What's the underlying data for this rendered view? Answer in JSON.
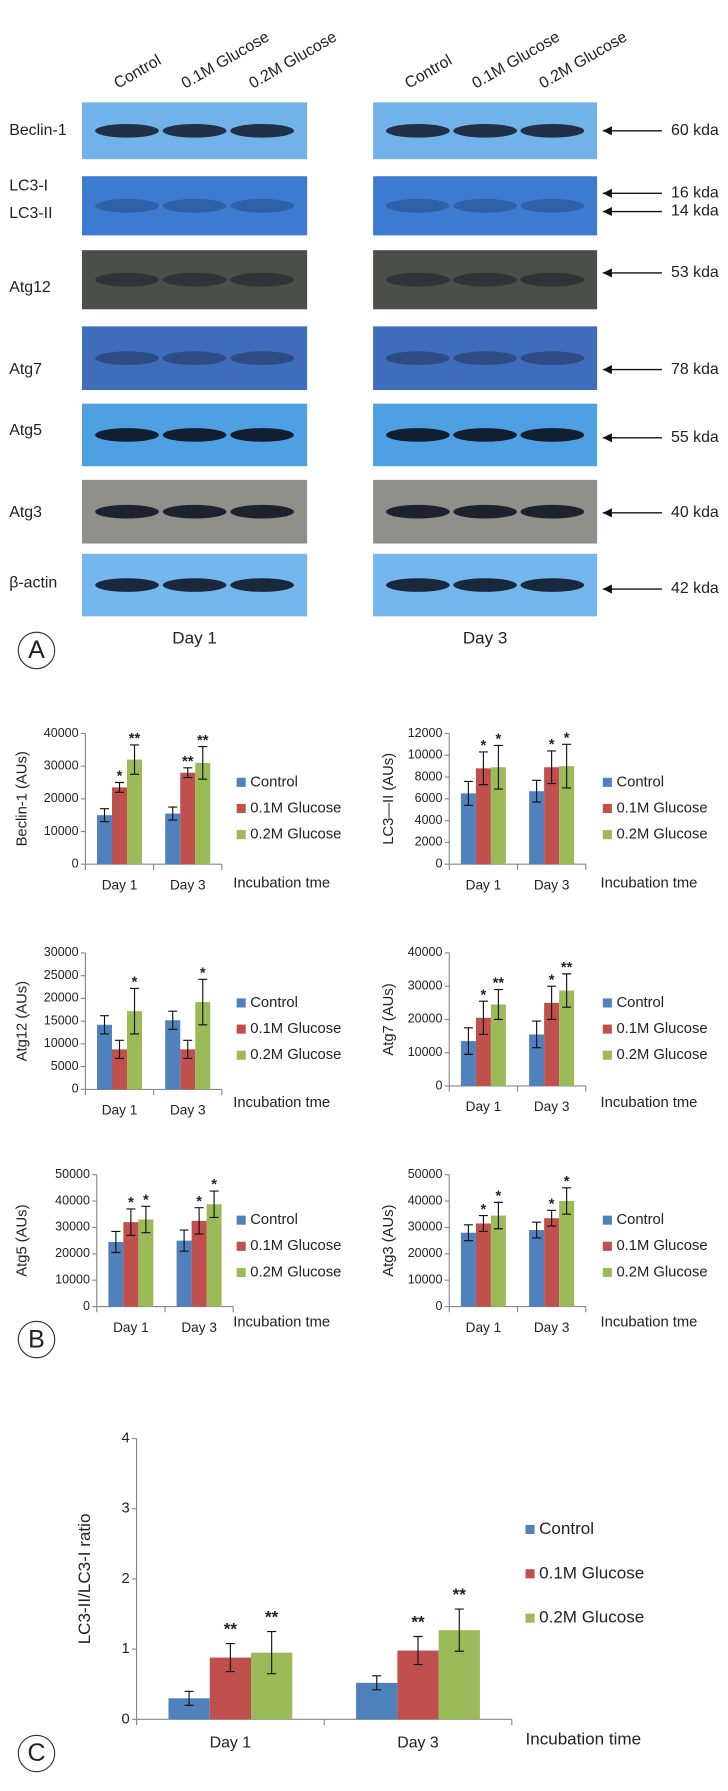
{
  "panel_labels": [
    "A",
    "B",
    "C"
  ],
  "blots": {
    "lanes": [
      "Control",
      "0.1M Glucose",
      "0.2M Glucose"
    ],
    "groups": [
      "Day 1",
      "Day 3"
    ],
    "rows": [
      "Beclin-1",
      "LC3-I",
      "LC3-II",
      "Atg12",
      "Atg7",
      "Atg5",
      "Atg3",
      "β-actin"
    ],
    "markers": [
      "60 kda",
      "16 kda",
      "14 kda",
      "53 kda",
      "78 kda",
      "55 kda",
      "40 kda",
      "42 kda"
    ]
  },
  "chart_data": [
    {
      "type": "bar",
      "ylabel": "Beclin-1 (AUs)",
      "xlabel": "Incubation tme",
      "categories": [
        "Day 1",
        "Day 3"
      ],
      "ylim": [
        0,
        40000
      ],
      "yticks": [
        0,
        10000,
        20000,
        30000,
        40000
      ],
      "series": [
        {
          "name": "Control",
          "color": "#4f81bd",
          "values": [
            15000,
            15500
          ],
          "errors": [
            2000,
            2000
          ],
          "significance": [
            null,
            null
          ]
        },
        {
          "name": "0.1M Glucose",
          "color": "#c0504d",
          "values": [
            23500,
            28000
          ],
          "errors": [
            1500,
            1500
          ],
          "significance": [
            "*",
            "**"
          ]
        },
        {
          "name": "0.2M Glucose",
          "color": "#9bbb59",
          "values": [
            32000,
            31000
          ],
          "errors": [
            4500,
            5000
          ],
          "significance": [
            "**",
            "**"
          ]
        }
      ]
    },
    {
      "type": "bar",
      "ylabel": "LC3—II (AUs)",
      "xlabel": "Incubation tme",
      "categories": [
        "Day 1",
        "Day 3"
      ],
      "ylim": [
        0,
        12000
      ],
      "yticks": [
        0,
        2000,
        4000,
        6000,
        8000,
        10000,
        12000
      ],
      "series": [
        {
          "name": "Control",
          "color": "#4f81bd",
          "values": [
            6500,
            6700
          ],
          "errors": [
            1100,
            1000
          ],
          "significance": [
            null,
            null
          ]
        },
        {
          "name": "0.1M Glucose",
          "color": "#c0504d",
          "values": [
            8800,
            8900
          ],
          "errors": [
            1500,
            1500
          ],
          "significance": [
            "*",
            "*"
          ]
        },
        {
          "name": "0.2M Glucose",
          "color": "#9bbb59",
          "values": [
            8900,
            9000
          ],
          "errors": [
            2000,
            2000
          ],
          "significance": [
            "*",
            "*"
          ]
        }
      ]
    },
    {
      "type": "bar",
      "ylabel": "Atg12 (AUs)",
      "xlabel": "Incubation tme",
      "categories": [
        "Day 1",
        "Day 3"
      ],
      "ylim": [
        0,
        30000
      ],
      "yticks": [
        0,
        5000,
        10000,
        15000,
        20000,
        25000,
        30000
      ],
      "series": [
        {
          "name": "Control",
          "color": "#4f81bd",
          "values": [
            14200,
            15200
          ],
          "errors": [
            2000,
            2000
          ],
          "significance": [
            null,
            null
          ]
        },
        {
          "name": "0.1M Glucose",
          "color": "#c0504d",
          "values": [
            8800,
            8800
          ],
          "errors": [
            2000,
            2000
          ],
          "significance": [
            null,
            null
          ]
        },
        {
          "name": "0.2M Glucose",
          "color": "#9bbb59",
          "values": [
            17200,
            19200
          ],
          "errors": [
            5000,
            5000
          ],
          "significance": [
            "*",
            "*"
          ]
        }
      ]
    },
    {
      "type": "bar",
      "ylabel": "Atg7 (AUs)",
      "xlabel": "Incubation tme",
      "categories": [
        "Day 1",
        "Day 3"
      ],
      "ylim": [
        0,
        40000
      ],
      "yticks": [
        0,
        10000,
        20000,
        30000,
        40000
      ],
      "series": [
        {
          "name": "Control",
          "color": "#4f81bd",
          "values": [
            13500,
            15500
          ],
          "errors": [
            4000,
            4000
          ],
          "significance": [
            null,
            null
          ]
        },
        {
          "name": "0.1M Glucose",
          "color": "#c0504d",
          "values": [
            20500,
            25000
          ],
          "errors": [
            5000,
            5000
          ],
          "significance": [
            "*",
            "*"
          ]
        },
        {
          "name": "0.2M Glucose",
          "color": "#9bbb59",
          "values": [
            24500,
            28700
          ],
          "errors": [
            4500,
            5000
          ],
          "significance": [
            "**",
            "**"
          ]
        }
      ]
    },
    {
      "type": "bar",
      "ylabel": "Atg5 (AUs)",
      "xlabel": "Incubation tme",
      "categories": [
        "Day 1",
        "Day 3"
      ],
      "ylim": [
        0,
        50000
      ],
      "yticks": [
        0,
        10000,
        20000,
        30000,
        40000,
        50000
      ],
      "series": [
        {
          "name": "Control",
          "color": "#4f81bd",
          "values": [
            24500,
            25000
          ],
          "errors": [
            4000,
            4000
          ],
          "significance": [
            null,
            null
          ]
        },
        {
          "name": "0.1M Glucose",
          "color": "#c0504d",
          "values": [
            32000,
            32500
          ],
          "errors": [
            5000,
            5000
          ],
          "significance": [
            "*",
            "*"
          ]
        },
        {
          "name": "0.2M Glucose",
          "color": "#9bbb59",
          "values": [
            33000,
            38800
          ],
          "errors": [
            5000,
            5000
          ],
          "significance": [
            "*",
            "*"
          ]
        }
      ]
    },
    {
      "type": "bar",
      "ylabel": "Atg3 (AUs)",
      "xlabel": "Incubation tme",
      "categories": [
        "Day 1",
        "Day 3"
      ],
      "ylim": [
        0,
        50000
      ],
      "yticks": [
        0,
        10000,
        20000,
        30000,
        40000,
        50000
      ],
      "series": [
        {
          "name": "Control",
          "color": "#4f81bd",
          "values": [
            28000,
            29000
          ],
          "errors": [
            3000,
            3000
          ],
          "significance": [
            null,
            null
          ]
        },
        {
          "name": "0.1M Glucose",
          "color": "#c0504d",
          "values": [
            31500,
            33500
          ],
          "errors": [
            3000,
            3000
          ],
          "significance": [
            "*",
            "*"
          ]
        },
        {
          "name": "0.2M Glucose",
          "color": "#9bbb59",
          "values": [
            34500,
            40000
          ],
          "errors": [
            5000,
            5000
          ],
          "significance": [
            "*",
            "*"
          ]
        }
      ]
    },
    {
      "type": "bar",
      "ylabel": "LC3-II/LC3-I ratio",
      "xlabel": "Incubation time",
      "categories": [
        "Day 1",
        "Day 3"
      ],
      "ylim": [
        0,
        4
      ],
      "yticks": [
        0,
        1,
        2,
        3,
        4
      ],
      "series": [
        {
          "name": "Control",
          "color": "#4f81bd",
          "values": [
            0.3,
            0.52
          ],
          "errors": [
            0.1,
            0.1
          ],
          "significance": [
            null,
            null
          ]
        },
        {
          "name": "0.1M Glucose",
          "color": "#c0504d",
          "values": [
            0.88,
            0.98
          ],
          "errors": [
            0.2,
            0.2
          ],
          "significance": [
            "**",
            "**"
          ]
        },
        {
          "name": "0.2M Glucose",
          "color": "#9bbb59",
          "values": [
            0.95,
            1.27
          ],
          "errors": [
            0.3,
            0.3
          ],
          "significance": [
            "**",
            "**"
          ]
        }
      ]
    }
  ]
}
